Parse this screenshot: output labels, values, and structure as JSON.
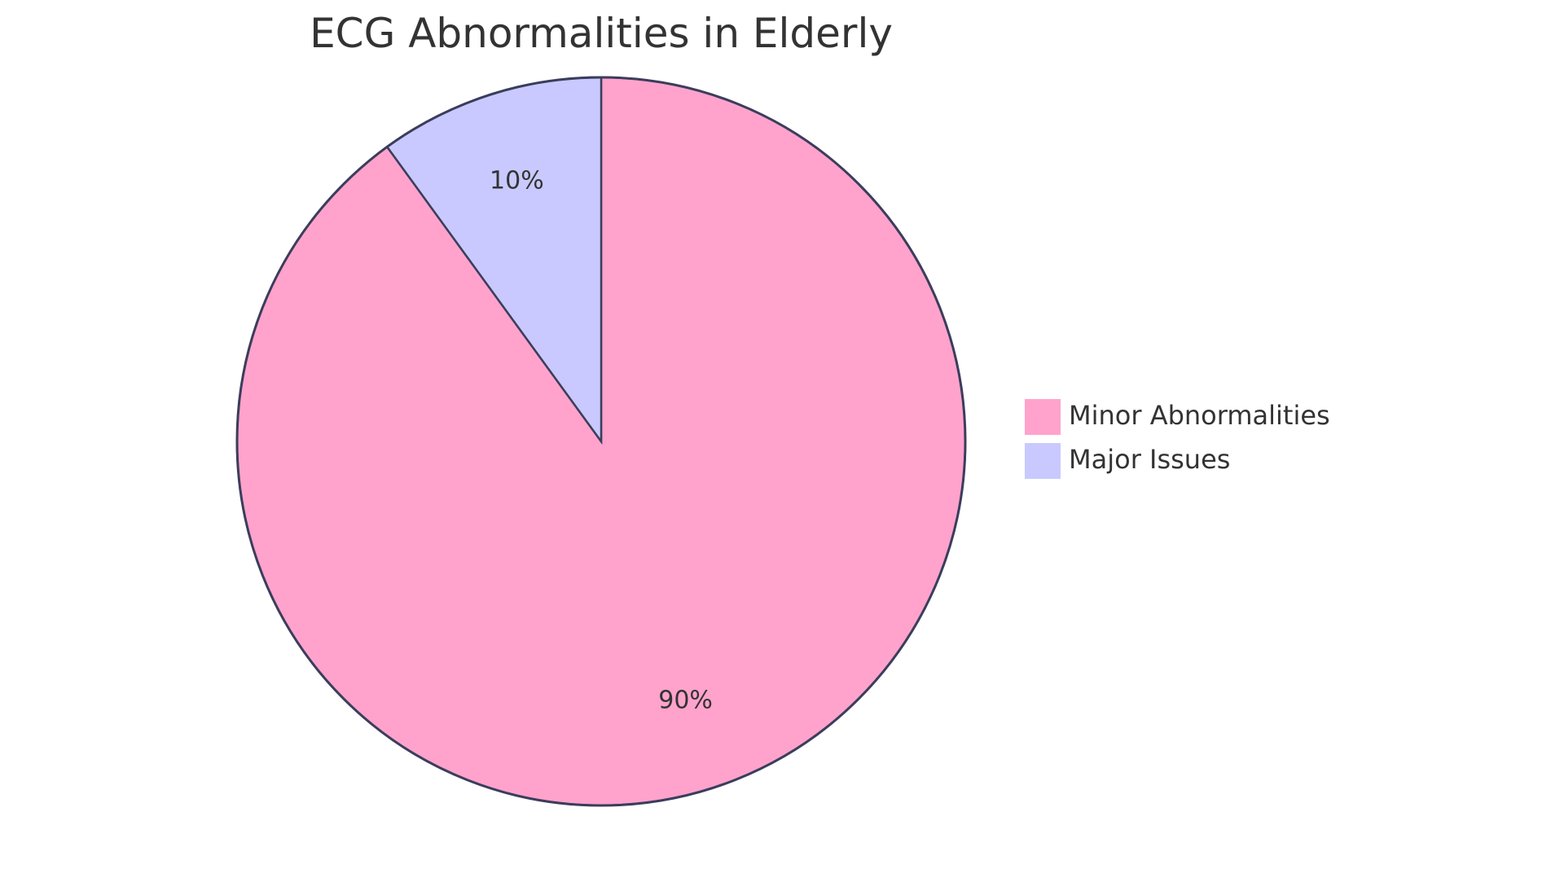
{
  "chart_data": {
    "type": "pie",
    "title": "ECG Abnormalities in Elderly",
    "slices": [
      {
        "label": "Minor Abnormalities",
        "value": 90,
        "display": "90%",
        "color": "#FFA3CC"
      },
      {
        "label": "Major Issues",
        "value": 10,
        "display": "10%",
        "color": "#C9C9FF"
      }
    ],
    "start_angle": "12 o'clock",
    "direction": "clockwise",
    "legend_position": "right",
    "outline_color": "#3B3D5C",
    "text_color": "#333333"
  }
}
